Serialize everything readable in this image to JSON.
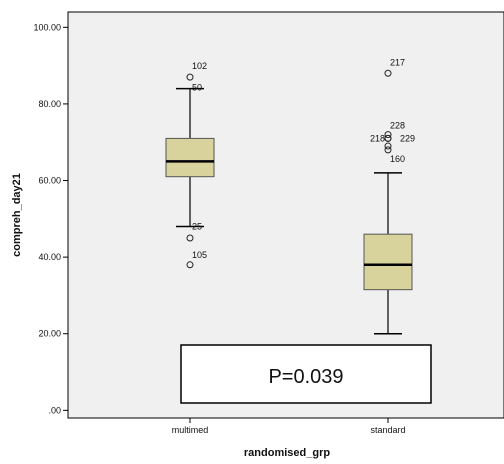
{
  "chart_data": {
    "type": "box",
    "xlabel": "randomised_grp",
    "ylabel": "compreh_day21",
    "ylim": [
      -2,
      104
    ],
    "yticks": [
      {
        "value": 0,
        "label": ".00"
      },
      {
        "value": 20,
        "label": "20.00"
      },
      {
        "value": 40,
        "label": "40.00"
      },
      {
        "value": 60,
        "label": "60.00"
      },
      {
        "value": 80,
        "label": "80.00"
      },
      {
        "value": 100,
        "label": "100.00"
      }
    ],
    "categories": [
      "multimed",
      "standard"
    ],
    "boxes": [
      {
        "category": "multimed",
        "whisker_low": 48,
        "q1": 61,
        "median": 65,
        "q3": 71,
        "whisker_high": 84,
        "outliers": [
          {
            "value": 87,
            "label": "102"
          },
          {
            "value": 84,
            "label": "50"
          },
          {
            "value": 48,
            "label": "25"
          },
          {
            "value": 45,
            "label": ""
          },
          {
            "value": 38,
            "label": "105"
          }
        ]
      },
      {
        "category": "standard",
        "whisker_low": 20,
        "q1": 31.5,
        "median": 38,
        "q3": 46,
        "whisker_high": 62,
        "outliers": [
          {
            "value": 88,
            "label": "217"
          },
          {
            "value": 72,
            "label": "228"
          },
          {
            "value": 71,
            "label": "218"
          },
          {
            "value": 71,
            "label": "229"
          },
          {
            "value": 69,
            "label": ""
          },
          {
            "value": 68,
            "label": "160"
          }
        ]
      }
    ],
    "annotation": "P=0.039",
    "colors": {
      "box_fill": "#d8d29c",
      "plot_bg": "#f0f0f0",
      "line": "#000000"
    },
    "grid": false
  }
}
